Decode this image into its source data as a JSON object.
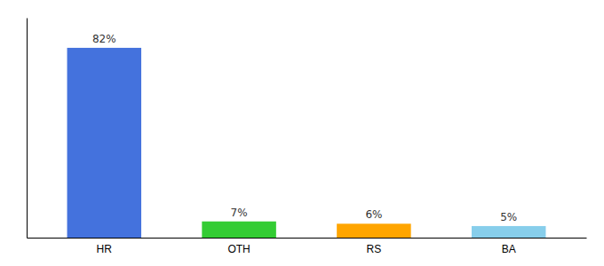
{
  "chart_data": {
    "type": "bar",
    "categories": [
      "HR",
      "OTH",
      "RS",
      "BA"
    ],
    "values": [
      82,
      7,
      6,
      5
    ],
    "value_labels": [
      "82%",
      "7%",
      "6%",
      "5%"
    ],
    "colors": [
      "#4472DD",
      "#33CC33",
      "#FFA500",
      "#87CEEB"
    ],
    "ylim": [
      0,
      95
    ],
    "data_labels": true,
    "tick_labels": "x"
  }
}
